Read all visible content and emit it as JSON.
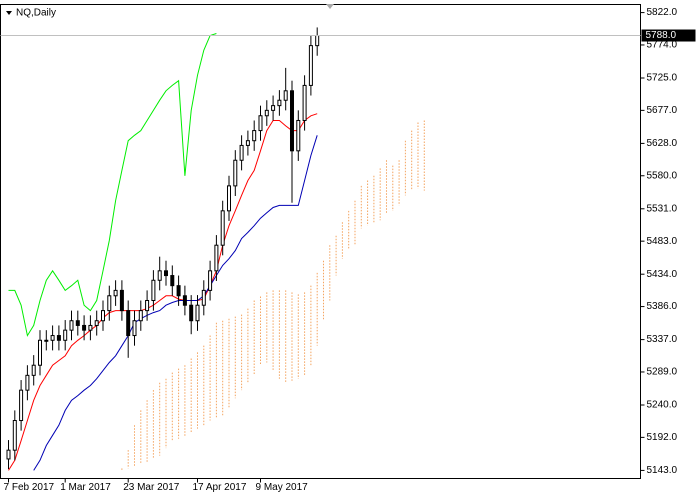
{
  "chart_data": {
    "type": "ohlc",
    "title": "NQ,Daily",
    "xlim": [
      -1.27,
      100.32
    ],
    "ylim": [
      5131,
      5834
    ],
    "yticks": [
      {
        "value": 5822,
        "label": "5822.0"
      },
      {
        "value": 5774,
        "label": "5774.0"
      },
      {
        "value": 5725,
        "label": "5725.0"
      },
      {
        "value": 5677,
        "label": "5677.0"
      },
      {
        "value": 5628,
        "label": "5628.0"
      },
      {
        "value": 5580,
        "label": "5580.0"
      },
      {
        "value": 5531,
        "label": "5531.0"
      },
      {
        "value": 5483,
        "label": "5483.0"
      },
      {
        "value": 5434,
        "label": "5434.0"
      },
      {
        "value": 5386,
        "label": "5386.0"
      },
      {
        "value": 5337,
        "label": "5337.0"
      },
      {
        "value": 5289,
        "label": "5289.0"
      },
      {
        "value": 5240,
        "label": "5240.0"
      },
      {
        "value": 5192,
        "label": "5192.0"
      },
      {
        "value": 5143,
        "label": "5143.0"
      }
    ],
    "xticks": [
      {
        "value": 0,
        "label": "7 Feb 2017"
      },
      {
        "value": 9,
        "label": "1 Mar 2017"
      },
      {
        "value": 19,
        "label": "23 Mar 2017"
      },
      {
        "value": 30,
        "label": "17 Apr 2017"
      },
      {
        "value": 40,
        "label": "9 May 2017"
      }
    ],
    "last_price": {
      "value": 5788,
      "label": "5788.0"
    },
    "ohlc": {
      "color": "#000000",
      "open": [
        5160,
        5173,
        5217,
        5262,
        5284,
        5299,
        5336,
        5336,
        5343,
        5336,
        5351,
        5365,
        5358,
        5351,
        5358,
        5365,
        5380,
        5402,
        5410,
        5380,
        5343,
        5365,
        5380,
        5395,
        5425,
        5439,
        5432,
        5417,
        5402,
        5388,
        5365,
        5388,
        5410,
        5439,
        5477,
        5528,
        5565,
        5603,
        5625,
        5632,
        5647,
        5669,
        5677,
        5684,
        5692,
        5706,
        5617,
        5662,
        5714,
        5773
      ],
      "high": [
        5188,
        5232,
        5277,
        5299,
        5314,
        5351,
        5351,
        5358,
        5358,
        5366,
        5380,
        5380,
        5373,
        5373,
        5380,
        5395,
        5417,
        5425,
        5425,
        5395,
        5380,
        5395,
        5410,
        5440,
        5460,
        5454,
        5447,
        5432,
        5417,
        5403,
        5403,
        5425,
        5454,
        5492,
        5543,
        5580,
        5618,
        5640,
        5647,
        5662,
        5684,
        5692,
        5699,
        5707,
        5740,
        5721,
        5677,
        5729,
        5788,
        5800
      ],
      "low": [
        5145,
        5158,
        5202,
        5247,
        5269,
        5284,
        5321,
        5321,
        5321,
        5321,
        5336,
        5343,
        5336,
        5336,
        5343,
        5350,
        5365,
        5387,
        5365,
        5310,
        5328,
        5350,
        5365,
        5380,
        5410,
        5417,
        5402,
        5387,
        5373,
        5345,
        5350,
        5373,
        5395,
        5424,
        5462,
        5513,
        5550,
        5588,
        5610,
        5617,
        5632,
        5654,
        5662,
        5669,
        5677,
        5540,
        5602,
        5647,
        5699,
        5758
      ],
      "close": [
        5173,
        5217,
        5262,
        5284,
        5299,
        5336,
        5336,
        5343,
        5336,
        5351,
        5365,
        5358,
        5351,
        5358,
        5365,
        5380,
        5402,
        5410,
        5380,
        5343,
        5365,
        5380,
        5395,
        5425,
        5439,
        5432,
        5417,
        5402,
        5388,
        5365,
        5388,
        5410,
        5439,
        5477,
        5528,
        5565,
        5603,
        5625,
        5632,
        5647,
        5669,
        5677,
        5684,
        5692,
        5706,
        5617,
        5662,
        5714,
        5773,
        5788
      ]
    },
    "series": [
      {
        "color": "#ff0000",
        "values": [
          5143,
          5158,
          5187,
          5217,
          5247,
          5269,
          5284,
          5299,
          5306,
          5313,
          5328,
          5336,
          5343,
          5351,
          5358,
          5369,
          5377,
          5380,
          5380,
          5380,
          5380,
          5380,
          5383,
          5388,
          5395,
          5402,
          5402,
          5397,
          5395,
          5395,
          5395,
          5397,
          5417,
          5439,
          5477,
          5506,
          5528,
          5551,
          5573,
          5588,
          5617,
          5647,
          5662,
          5662,
          5654,
          5647,
          5647,
          5662,
          5669,
          5672
        ]
      },
      {
        "color": "#0000b4",
        "values": [
          null,
          null,
          null,
          null,
          5143,
          5158,
          5180,
          5195,
          5210,
          5232,
          5247,
          5254,
          5262,
          5269,
          5279,
          5291,
          5303,
          5313,
          5328,
          5343,
          5362,
          5368,
          5373,
          5377,
          5380,
          5388,
          5392,
          5395,
          5395,
          5395,
          5395,
          5402,
          5417,
          5432,
          5447,
          5457,
          5469,
          5487,
          5496,
          5506,
          5517,
          5525,
          5533,
          5536,
          5536,
          5536,
          5536,
          5573,
          5610,
          5640
        ]
      },
      {
        "color": "#00ee00",
        "values": [
          5410,
          5410,
          5388,
          5343,
          5358,
          5395,
          5425,
          5439,
          5425,
          5410,
          5417,
          5425,
          5388,
          5380,
          5395,
          5439,
          5484,
          5543,
          5588,
          5632,
          5640,
          5647,
          5662,
          5677,
          5692,
          5706,
          5714,
          5721,
          5580,
          5677,
          5729,
          5766,
          5788,
          5791,
          null,
          null,
          null,
          null,
          null,
          null,
          null,
          null,
          null,
          null,
          null,
          null,
          null,
          null,
          null,
          null
        ]
      }
    ],
    "cloud": {
      "color": "#f4a460",
      "span_a": [
        null,
        null,
        null,
        null,
        null,
        null,
        null,
        null,
        null,
        null,
        null,
        null,
        null,
        null,
        null,
        null,
        null,
        null,
        5146,
        5173,
        5210,
        5232,
        5247,
        5262,
        5273,
        5279,
        5288,
        5294,
        5299,
        5309,
        5318,
        5328,
        5343,
        5362,
        5365,
        5368,
        5371,
        5374,
        5383,
        5395,
        5401,
        5407,
        5410,
        5410,
        5410,
        5407,
        5404,
        5407,
        5417,
        5436,
        5454,
        5477,
        5491,
        5511,
        5528,
        5543,
        5565,
        5573,
        5580,
        5591,
        5603,
        5595,
        5603,
        5632,
        5647,
        5659,
        5662
      ],
      "span_b": [
        null,
        null,
        null,
        null,
        null,
        null,
        null,
        null,
        null,
        null,
        null,
        null,
        null,
        null,
        null,
        null,
        null,
        null,
        5143,
        5146,
        5149,
        5152,
        5155,
        5161,
        5165,
        5176,
        5187,
        5190,
        5193,
        5199,
        5205,
        5210,
        5217,
        5220,
        5224,
        5235,
        5250,
        5262,
        5273,
        5284,
        5299,
        5303,
        5291,
        5279,
        5273,
        5276,
        5279,
        5284,
        5299,
        5328,
        5365,
        5395,
        5432,
        5457,
        5472,
        5477,
        5502,
        5506,
        5511,
        5514,
        5525,
        5528,
        5536,
        5551,
        5558,
        5561,
        5558
      ]
    }
  }
}
